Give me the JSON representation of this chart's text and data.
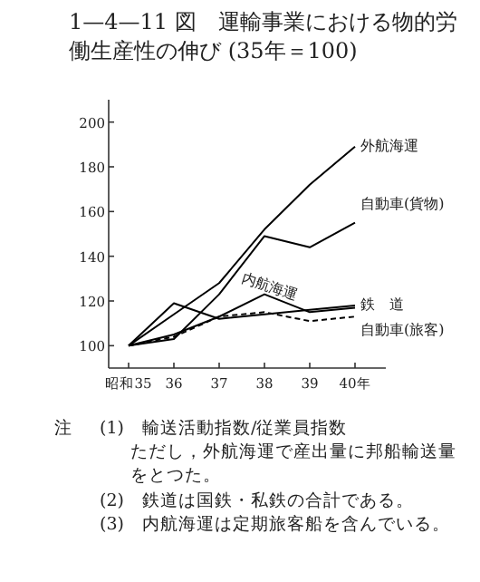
{
  "chart_data": {
    "type": "line",
    "title": "1—4—11 図　運輸事業における物的労働生産性の伸び (35年＝100)",
    "categories": [
      "昭和35",
      "36",
      "37",
      "38",
      "39",
      "40年"
    ],
    "series": [
      {
        "name": "外航海運",
        "color": "#000000",
        "line_style": "solid",
        "values": [
          100,
          114,
          128,
          152,
          172,
          189
        ]
      },
      {
        "name": "自動車(貨物)",
        "color": "#000000",
        "line_style": "solid",
        "values": [
          100,
          103,
          123,
          149,
          144,
          155
        ]
      },
      {
        "name": "内航海運",
        "color": "#000000",
        "line_style": "solid",
        "values": [
          100,
          105,
          113,
          123,
          115,
          117
        ]
      },
      {
        "name": "鉄　道",
        "color": "#000000",
        "line_style": "solid",
        "values": [
          100,
          119,
          112,
          114,
          116,
          118
        ]
      },
      {
        "name": "自動車(旅客)",
        "color": "#000000",
        "line_style": "dashed",
        "values": [
          100,
          104,
          113,
          115,
          111,
          113
        ]
      }
    ],
    "ylim": [
      90,
      210
    ],
    "yticks": [
      100,
      120,
      140,
      160,
      180,
      200
    ],
    "grid": false,
    "legend": false,
    "marker": "none",
    "annotations": [
      "注",
      "(1)　輸送活動指数/従業員指数",
      "ただし，外航海運で産出量に邦船輸送量をとつた。",
      "(2)　鉄道は国鉄・私鉄の合計である。",
      "(3)　内航海運は定期旅客船を含んでいる。"
    ]
  }
}
